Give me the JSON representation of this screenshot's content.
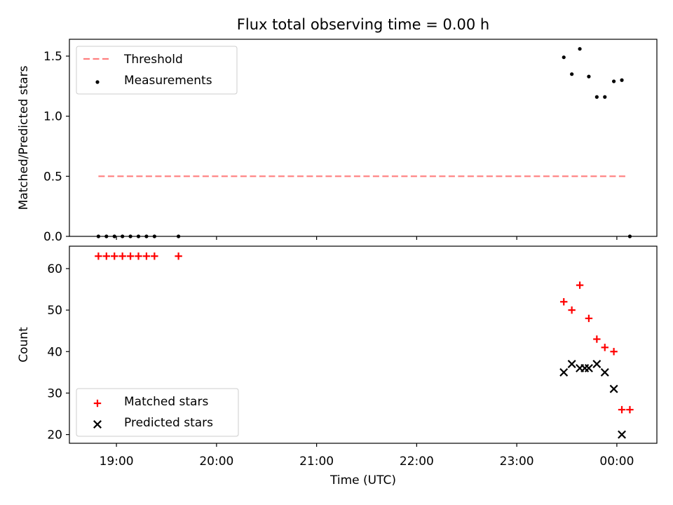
{
  "chart_data": {
    "title": "Flux total observing time = 0.00 h",
    "xlabel": "Time (UTC)",
    "x_ticks": [
      "19:00",
      "20:00",
      "21:00",
      "22:00",
      "23:00",
      "00:00"
    ],
    "x_tick_hours": [
      19,
      20,
      21,
      22,
      23,
      24
    ],
    "xlim_hours": [
      18.53,
      24.4
    ],
    "panels": [
      {
        "type": "scatter",
        "ylabel": "Matched/Predicted stars",
        "ylim": [
          0,
          1.64
        ],
        "y_ticks": [
          0.0,
          0.5,
          1.0,
          1.5
        ],
        "y_tick_labels": [
          "0.0",
          "0.5",
          "1.0",
          "1.5"
        ],
        "legend_position": "upper-left",
        "series": [
          {
            "name": "Threshold",
            "kind": "line",
            "color": "#ff7f7f",
            "dash": "dashed",
            "points": [
              [
                18.82,
                0.5
              ],
              [
                24.1,
                0.5
              ]
            ]
          },
          {
            "name": "Measurements",
            "kind": "dot",
            "color": "#000000",
            "points": [
              [
                18.82,
                0.0
              ],
              [
                18.9,
                0.0
              ],
              [
                18.98,
                0.0
              ],
              [
                19.06,
                0.0
              ],
              [
                19.14,
                0.0
              ],
              [
                19.22,
                0.0
              ],
              [
                19.3,
                0.0
              ],
              [
                19.38,
                0.0
              ],
              [
                19.62,
                0.0
              ],
              [
                23.47,
                1.49
              ],
              [
                23.55,
                1.35
              ],
              [
                23.63,
                1.56
              ],
              [
                23.72,
                1.33
              ],
              [
                23.8,
                1.16
              ],
              [
                23.88,
                1.16
              ],
              [
                23.97,
                1.29
              ],
              [
                24.05,
                1.3
              ],
              [
                24.13,
                0.0
              ]
            ]
          }
        ]
      },
      {
        "type": "scatter",
        "ylabel": "Count",
        "ylim": [
          17.9,
          65.4
        ],
        "y_ticks": [
          20,
          30,
          40,
          50,
          60
        ],
        "y_tick_labels": [
          "20",
          "30",
          "40",
          "50",
          "60"
        ],
        "legend_position": "lower-left",
        "series": [
          {
            "name": "Matched stars",
            "kind": "plus",
            "color": "#ff0000",
            "points": [
              [
                18.82,
                63
              ],
              [
                18.9,
                63
              ],
              [
                18.98,
                63
              ],
              [
                19.06,
                63
              ],
              [
                19.14,
                63
              ],
              [
                19.22,
                63
              ],
              [
                19.3,
                63
              ],
              [
                19.38,
                63
              ],
              [
                19.62,
                63
              ],
              [
                23.47,
                52
              ],
              [
                23.55,
                50
              ],
              [
                23.63,
                56
              ],
              [
                23.72,
                48
              ],
              [
                23.8,
                43
              ],
              [
                23.88,
                41
              ],
              [
                23.97,
                40
              ],
              [
                24.05,
                26
              ],
              [
                24.13,
                26
              ]
            ]
          },
          {
            "name": "Predicted stars",
            "kind": "cross",
            "color": "#000000",
            "points": [
              [
                23.47,
                35
              ],
              [
                23.55,
                37
              ],
              [
                23.63,
                36
              ],
              [
                23.68,
                36
              ],
              [
                23.72,
                36
              ],
              [
                23.8,
                37
              ],
              [
                23.88,
                35
              ],
              [
                23.97,
                31
              ],
              [
                24.05,
                20
              ]
            ]
          }
        ]
      }
    ]
  }
}
